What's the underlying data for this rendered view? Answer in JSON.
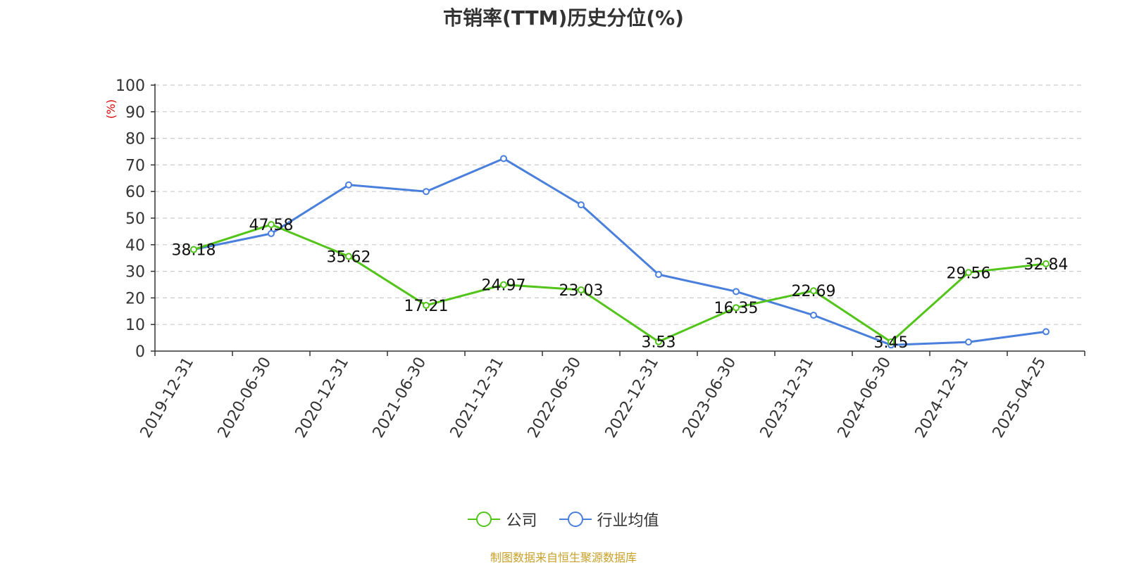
{
  "chart_data": {
    "type": "line",
    "title": "市销率(TTM)历史分位(%)",
    "ylabel": "(%)",
    "xlabel": "",
    "ylim": [
      0,
      100
    ],
    "yticks": [
      0,
      10,
      20,
      30,
      40,
      50,
      60,
      70,
      80,
      90,
      100
    ],
    "grid": true,
    "legend_position": "bottom",
    "categories": [
      "2019-12-31",
      "2020-06-30",
      "2020-12-31",
      "2021-06-30",
      "2021-12-31",
      "2022-06-30",
      "2022-12-31",
      "2023-06-30",
      "2023-12-31",
      "2024-06-30",
      "2024-12-31",
      "2025-04-25"
    ],
    "series": [
      {
        "name": "公司",
        "color": "#52c41a",
        "values": [
          38.18,
          47.58,
          35.62,
          17.21,
          24.97,
          23.03,
          3.53,
          16.35,
          22.69,
          3.45,
          29.56,
          32.84
        ],
        "data_labels": [
          "38.18",
          "47.58",
          "35.62",
          "17.21",
          "24.97",
          "23.03",
          "3.53",
          "16.35",
          "22.69",
          "3.45",
          "29.56",
          "32.84"
        ]
      },
      {
        "name": "行业均值",
        "color": "#4a7fdc",
        "values": [
          38.2,
          44.2,
          62.5,
          60.0,
          72.4,
          55.0,
          28.8,
          22.4,
          13.5,
          2.3,
          3.4,
          7.3
        ]
      }
    ]
  },
  "source_note": "制图数据来自恒生聚源数据库"
}
